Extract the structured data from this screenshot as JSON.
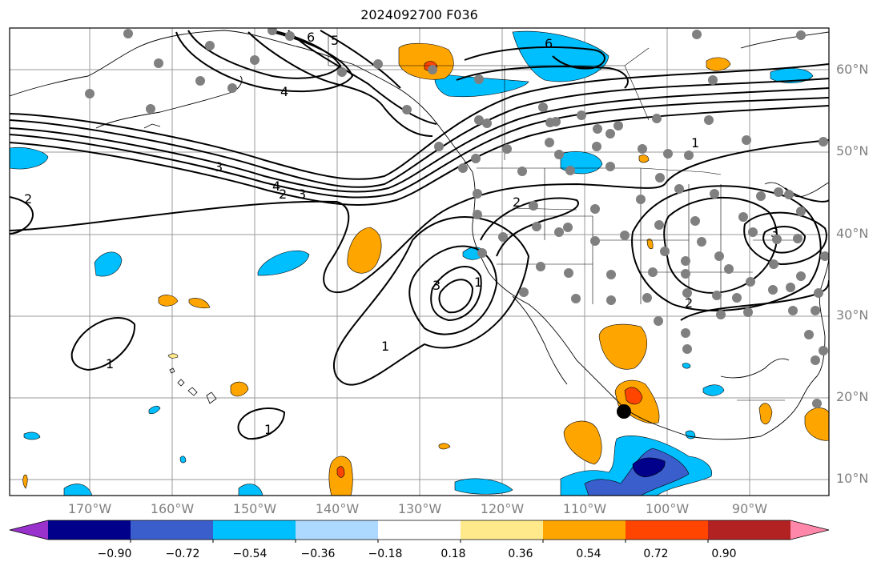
{
  "title": "2024092700 F036",
  "lat_labels": [
    "60°N",
    "50°N",
    "40°N",
    "30°N",
    "20°N",
    "10°N"
  ],
  "lon_labels": [
    "170°W",
    "160°W",
    "150°W",
    "140°W",
    "130°W",
    "120°W",
    "110°W",
    "100°W",
    "90°W"
  ],
  "colorbar": {
    "colors": [
      "#9932cc",
      "#00008b",
      "#3a5fcd",
      "#00bfff",
      "#add8ff",
      "#ffffff",
      "#ffe98a",
      "#ffa500",
      "#ff4500",
      "#b22222",
      "#ff88aa"
    ],
    "tick_labels": [
      "−0.90",
      "−0.72",
      "−0.54",
      "−0.36",
      "−0.18",
      "0.18",
      "0.36",
      "0.54",
      "0.72",
      "0.90"
    ]
  },
  "contour_labels": [
    "6",
    "5",
    "4",
    "6",
    "4",
    "3",
    "2",
    "2",
    "1",
    "3",
    "1",
    "1",
    "1",
    "2",
    "3",
    "1",
    "3",
    "2"
  ],
  "marker_color": "#808080"
}
